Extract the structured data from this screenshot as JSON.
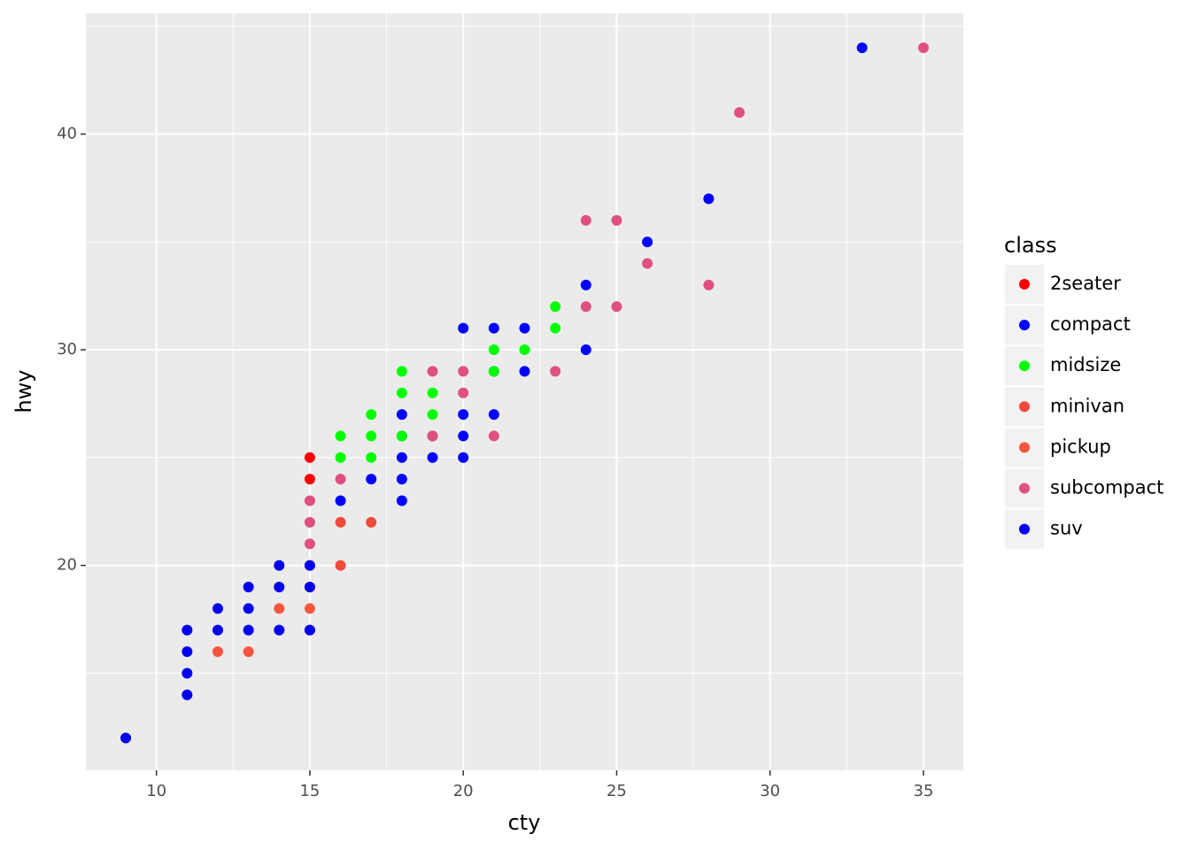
{
  "chart_data": {
    "type": "scatter",
    "x_label": "cty",
    "y_label": "hwy",
    "legend_title": "class",
    "xlim": [
      7.7,
      36.3
    ],
    "ylim": [
      10.5,
      45.6
    ],
    "xticks": [
      10,
      15,
      20,
      25,
      30,
      35
    ],
    "yticks": [
      20,
      30,
      40
    ],
    "x_minor_breaks": [
      12.5,
      17.5,
      22.5,
      27.5,
      32.5
    ],
    "y_minor_breaks": [
      15,
      25,
      35,
      45
    ],
    "grid": true,
    "legend_position": "right",
    "series": [
      {
        "name": "2seater",
        "color": "#ff0000",
        "x": [
          15,
          15
        ],
        "y": [
          25,
          24
        ]
      },
      {
        "name": "compact",
        "color": "#0000ff",
        "x": [
          33,
          28,
          26,
          24,
          24,
          22,
          21,
          20,
          22,
          21,
          21,
          20,
          20,
          19,
          19,
          20,
          18,
          18,
          18,
          18,
          18,
          17,
          16
        ],
        "y": [
          44,
          37,
          35,
          33,
          30,
          31,
          31,
          31,
          29,
          29,
          27,
          27,
          26,
          26,
          25,
          25,
          27,
          26,
          25,
          24,
          23,
          24,
          23
        ]
      },
      {
        "name": "midsize",
        "color": "#00ff00",
        "x": [
          23,
          23,
          22,
          21,
          21,
          18,
          18,
          19,
          19,
          17,
          17,
          16,
          16,
          17,
          18
        ],
        "y": [
          32,
          31,
          30,
          30,
          29,
          29,
          28,
          28,
          27,
          27,
          26,
          26,
          25,
          25,
          26
        ]
      },
      {
        "name": "minivan",
        "color": "#f24a3a",
        "x": [
          16,
          17,
          16,
          15
        ],
        "y": [
          22,
          22,
          20,
          20
        ]
      },
      {
        "name": "pickup",
        "color": "#f85540",
        "x": [
          15,
          15,
          14,
          12,
          13,
          15
        ],
        "y": [
          17,
          18,
          18,
          16,
          16,
          19
        ]
      },
      {
        "name": "subcompact",
        "color": "#e0507f",
        "x": [
          35,
          29,
          24,
          25,
          26,
          28,
          24,
          25,
          23,
          19,
          20,
          20,
          19,
          21,
          16,
          15,
          15,
          15
        ],
        "y": [
          44,
          41,
          36,
          36,
          34,
          33,
          32,
          32,
          29,
          29,
          29,
          28,
          26,
          26,
          24,
          23,
          22,
          21
        ]
      },
      {
        "name": "suv",
        "color": "#0000ee",
        "x": [
          9,
          11,
          11,
          11,
          11,
          12,
          12,
          13,
          13,
          13,
          14,
          14,
          14,
          15,
          15,
          15
        ],
        "y": [
          12,
          14,
          15,
          16,
          17,
          17,
          18,
          17,
          18,
          19,
          17,
          19,
          20,
          17,
          19,
          20
        ]
      }
    ]
  }
}
